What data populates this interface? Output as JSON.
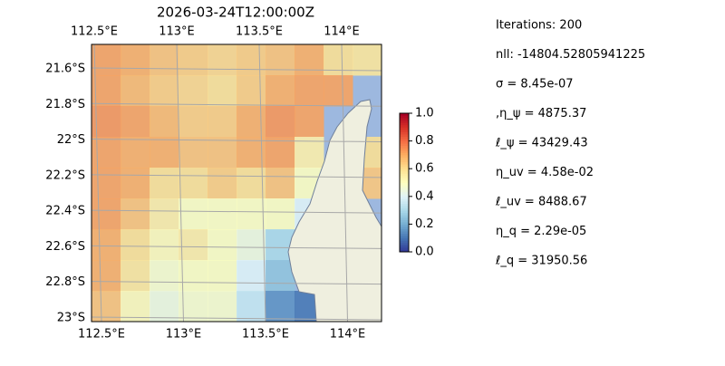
{
  "title": "2026-03-24T12:00:00Z",
  "map": {
    "lon_ticks": [
      {
        "value": 112.5,
        "label": "112.5°E"
      },
      {
        "value": 113,
        "label": "113°E"
      },
      {
        "value": 113.5,
        "label": "113.5°E"
      },
      {
        "value": 114,
        "label": "114°E"
      }
    ],
    "lat_ticks": [
      {
        "value": -21.6,
        "label": "21.6°S"
      },
      {
        "value": -21.8,
        "label": "21.8°S"
      },
      {
        "value": -22,
        "label": "22°S"
      },
      {
        "value": -22.2,
        "label": "22.2°S"
      },
      {
        "value": -22.4,
        "label": "22.4°S"
      },
      {
        "value": -22.6,
        "label": "22.6°S"
      },
      {
        "value": -22.8,
        "label": "22.8°S"
      },
      {
        "value": -23,
        "label": "23°S"
      }
    ],
    "field": [
      [
        0.72,
        0.7,
        0.66,
        0.64,
        0.62,
        0.64,
        0.66,
        0.7,
        0.6,
        0.58
      ],
      [
        0.72,
        0.68,
        0.64,
        0.62,
        0.6,
        0.64,
        0.7,
        0.72,
        0.72,
        null
      ],
      [
        0.74,
        0.72,
        0.68,
        0.64,
        0.64,
        0.7,
        0.74,
        0.72,
        null,
        null
      ],
      [
        0.72,
        0.7,
        0.7,
        0.66,
        0.66,
        0.7,
        0.72,
        0.55,
        null,
        0.6
      ],
      [
        0.72,
        0.7,
        0.6,
        0.6,
        0.64,
        0.6,
        0.66,
        0.5,
        null,
        0.65
      ],
      [
        0.72,
        0.66,
        0.56,
        0.5,
        0.5,
        0.5,
        0.5,
        0.4,
        null,
        null
      ],
      [
        0.7,
        0.6,
        0.52,
        0.56,
        0.5,
        0.45,
        0.3,
        null,
        null,
        null
      ],
      [
        0.7,
        0.58,
        0.48,
        0.5,
        0.5,
        0.4,
        0.25,
        null,
        null,
        null
      ],
      [
        0.66,
        0.52,
        0.45,
        0.48,
        0.48,
        0.35,
        0.15,
        0.1,
        null,
        null
      ]
    ]
  },
  "colorbar": {
    "lim": [
      0,
      1
    ],
    "ticks": [
      {
        "value": 0,
        "label": "0.0"
      },
      {
        "value": 0.2,
        "label": "0.2"
      },
      {
        "value": 0.4,
        "label": "0.4"
      },
      {
        "value": 0.6,
        "label": "0.6"
      },
      {
        "value": 0.8,
        "label": "0.8"
      },
      {
        "value": 1,
        "label": "1.0"
      }
    ]
  },
  "info": [
    "Iterations: 200",
    "nll: -14804.52805941225",
    "σ = 8.45e-07",
    ",η_ψ = 4875.37",
    "ℓ_ψ = 43429.43",
    "η_uv = 4.58e-02",
    "ℓ_uv = 8488.67",
    "η_q = 2.29e-05",
    "ℓ_q = 31950.56"
  ]
}
